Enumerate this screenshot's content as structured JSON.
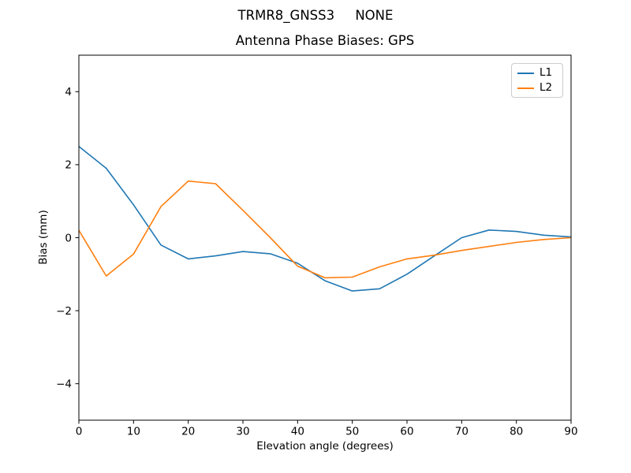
{
  "figure": {
    "suptitle": "TRMR8_GNSS3     NONE",
    "background": "#ffffff"
  },
  "chart_data": {
    "type": "line",
    "title": "Antenna Phase Biases: GPS",
    "xlabel": "Elevation angle (degrees)",
    "ylabel": "Bias (mm)",
    "xlim": [
      0,
      90
    ],
    "ylim": [
      -5,
      5
    ],
    "xticks": [
      0,
      10,
      20,
      30,
      40,
      50,
      60,
      70,
      80,
      90
    ],
    "xtick_labels": [
      "0",
      "10",
      "20",
      "30",
      "40",
      "50",
      "60",
      "70",
      "80",
      "90"
    ],
    "yticks": [
      -4,
      -2,
      0,
      2,
      4
    ],
    "ytick_labels": [
      "−4",
      "−2",
      "0",
      "2",
      "4"
    ],
    "grid": false,
    "legend": {
      "position": "upper right",
      "entries": [
        "L1",
        "L2"
      ]
    },
    "x": [
      0,
      5,
      10,
      15,
      20,
      25,
      30,
      35,
      40,
      45,
      50,
      55,
      60,
      65,
      70,
      75,
      80,
      85,
      90
    ],
    "series": [
      {
        "name": "L1",
        "color": "#1f77b4",
        "values": [
          2.5,
          1.9,
          0.9,
          -0.2,
          -0.58,
          -0.5,
          -0.38,
          -0.44,
          -0.7,
          -1.18,
          -1.46,
          -1.4,
          -1.0,
          -0.5,
          0.0,
          0.21,
          0.17,
          0.07,
          0.02
        ]
      },
      {
        "name": "L2",
        "color": "#ff7f0e",
        "values": [
          0.2,
          -1.05,
          -0.45,
          0.85,
          1.55,
          1.48,
          0.75,
          0.0,
          -0.78,
          -1.1,
          -1.08,
          -0.8,
          -0.58,
          -0.48,
          -0.35,
          -0.24,
          -0.13,
          -0.05,
          0.0
        ]
      }
    ]
  }
}
